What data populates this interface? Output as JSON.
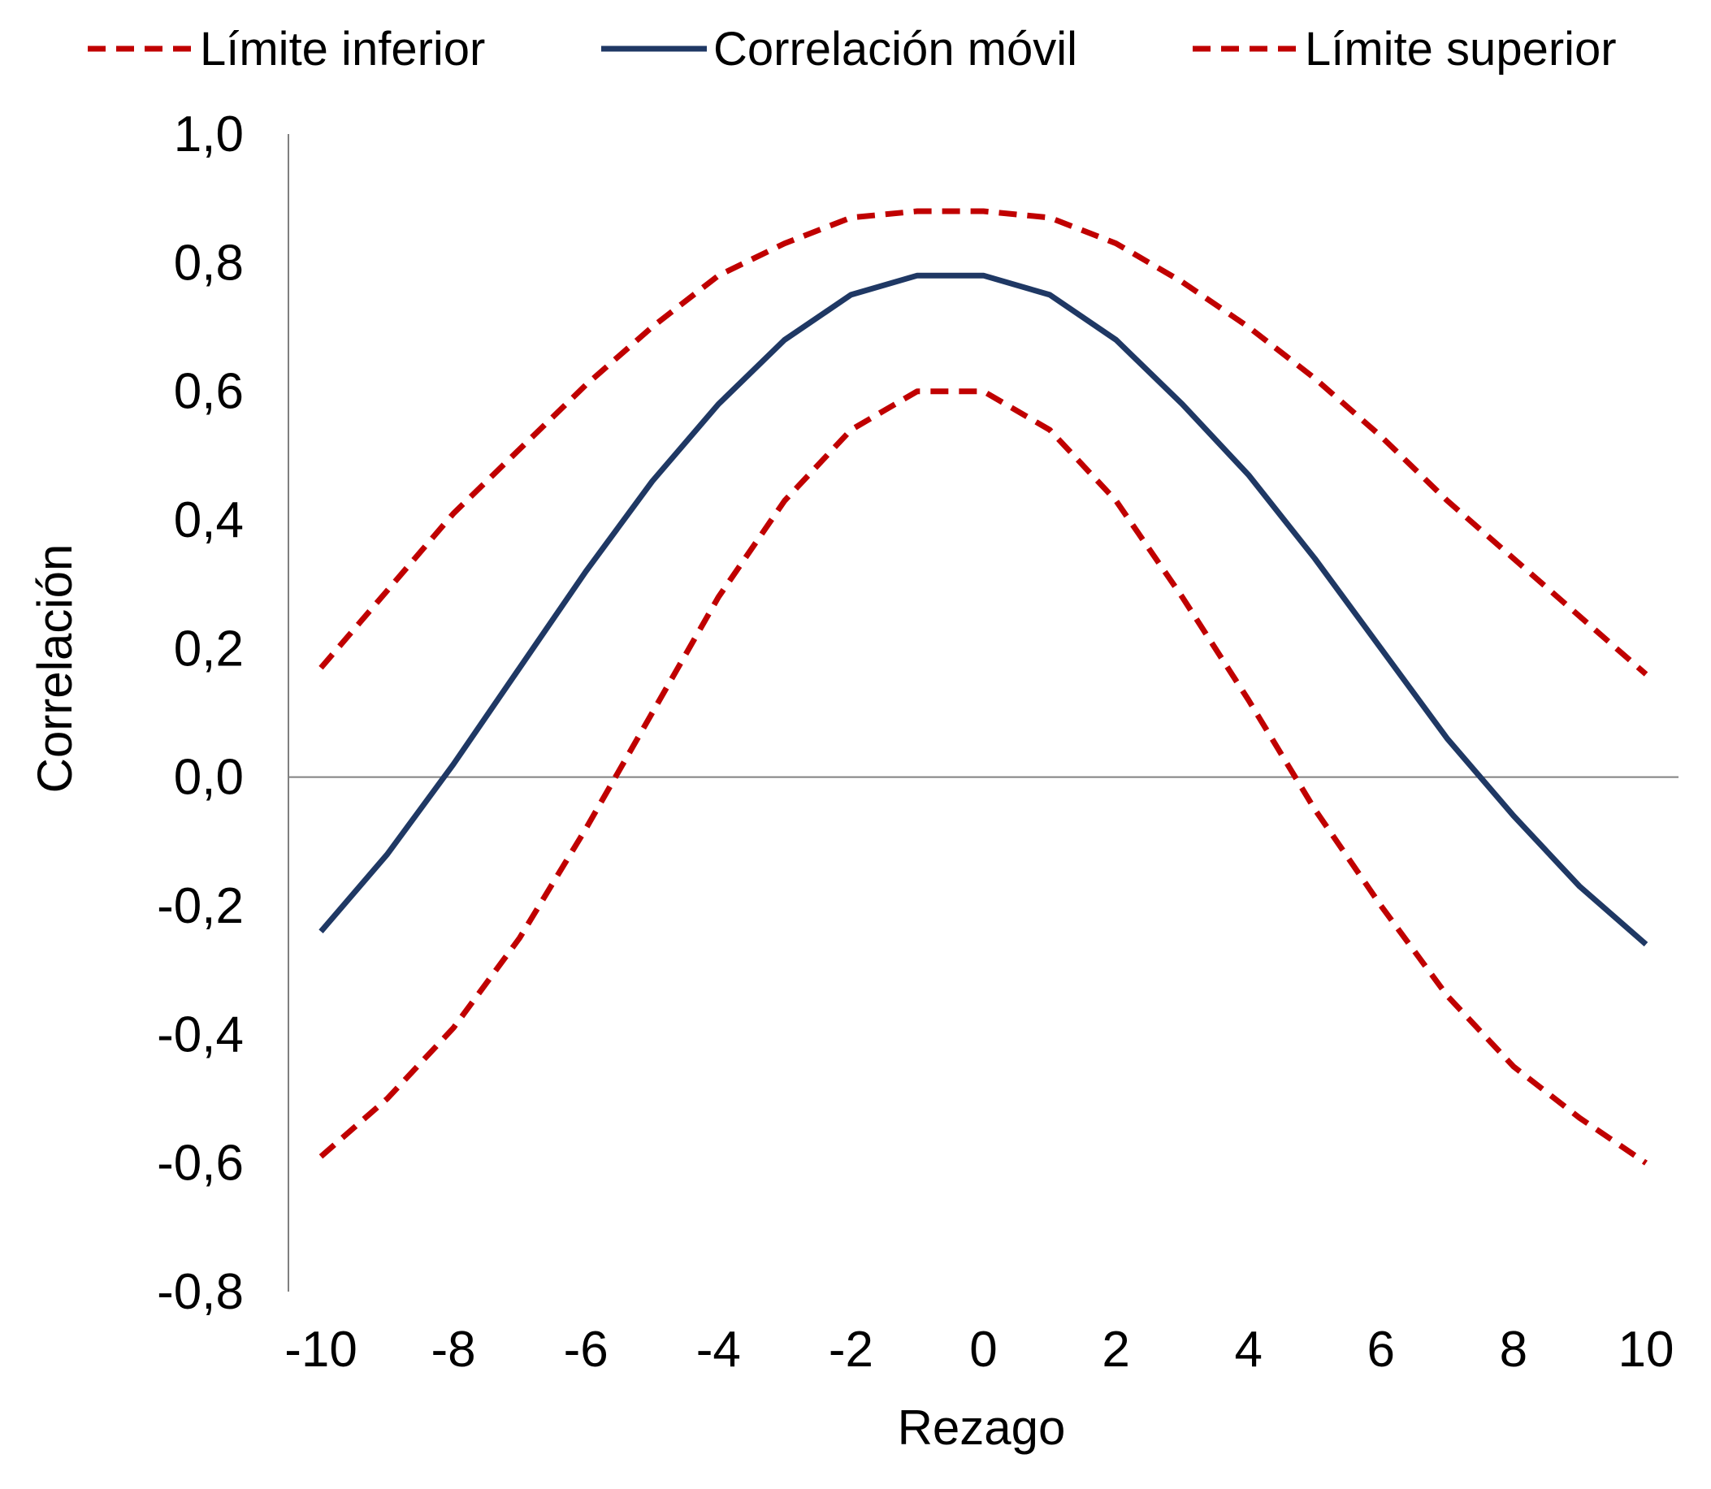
{
  "chart_data": {
    "type": "line",
    "xlabel": "Rezago",
    "ylabel": "Correlación",
    "xlim": [
      -10,
      10
    ],
    "ylim": [
      -0.8,
      1.0
    ],
    "x_ticks": [
      "-10",
      "-8",
      "-6",
      "-4",
      "-2",
      "0",
      "2",
      "4",
      "6",
      "8",
      "10"
    ],
    "y_ticks": [
      "1,0",
      "0,8",
      "0,6",
      "0,4",
      "0,2",
      "0,0",
      "-0,2",
      "-0,4",
      "-0,6",
      "-0,8"
    ],
    "x": [
      -10,
      -9,
      -8,
      -7,
      -6,
      -5,
      -4,
      -3,
      -2,
      -1,
      0,
      1,
      2,
      3,
      4,
      5,
      6,
      7,
      8,
      9,
      10
    ],
    "legend_position": "top",
    "series": [
      {
        "name": "Límite inferior",
        "color": "#c00000",
        "style": "dashed",
        "values": [
          -0.59,
          -0.5,
          -0.39,
          -0.25,
          -0.08,
          0.1,
          0.28,
          0.43,
          0.54,
          0.6,
          0.6,
          0.54,
          0.43,
          0.28,
          0.12,
          -0.05,
          -0.2,
          -0.34,
          -0.45,
          -0.53,
          -0.6
        ]
      },
      {
        "name": "Correlación móvil",
        "color": "#1f3864",
        "style": "solid",
        "values": [
          -0.24,
          -0.12,
          0.02,
          0.17,
          0.32,
          0.46,
          0.58,
          0.68,
          0.75,
          0.78,
          0.78,
          0.75,
          0.68,
          0.58,
          0.47,
          0.34,
          0.2,
          0.06,
          -0.06,
          -0.17,
          -0.26
        ]
      },
      {
        "name": "Límite superior",
        "color": "#c00000",
        "style": "dashed",
        "values": [
          0.17,
          0.29,
          0.41,
          0.51,
          0.61,
          0.7,
          0.78,
          0.83,
          0.87,
          0.88,
          0.88,
          0.87,
          0.83,
          0.77,
          0.7,
          0.62,
          0.53,
          0.43,
          0.34,
          0.25,
          0.16
        ]
      }
    ]
  }
}
